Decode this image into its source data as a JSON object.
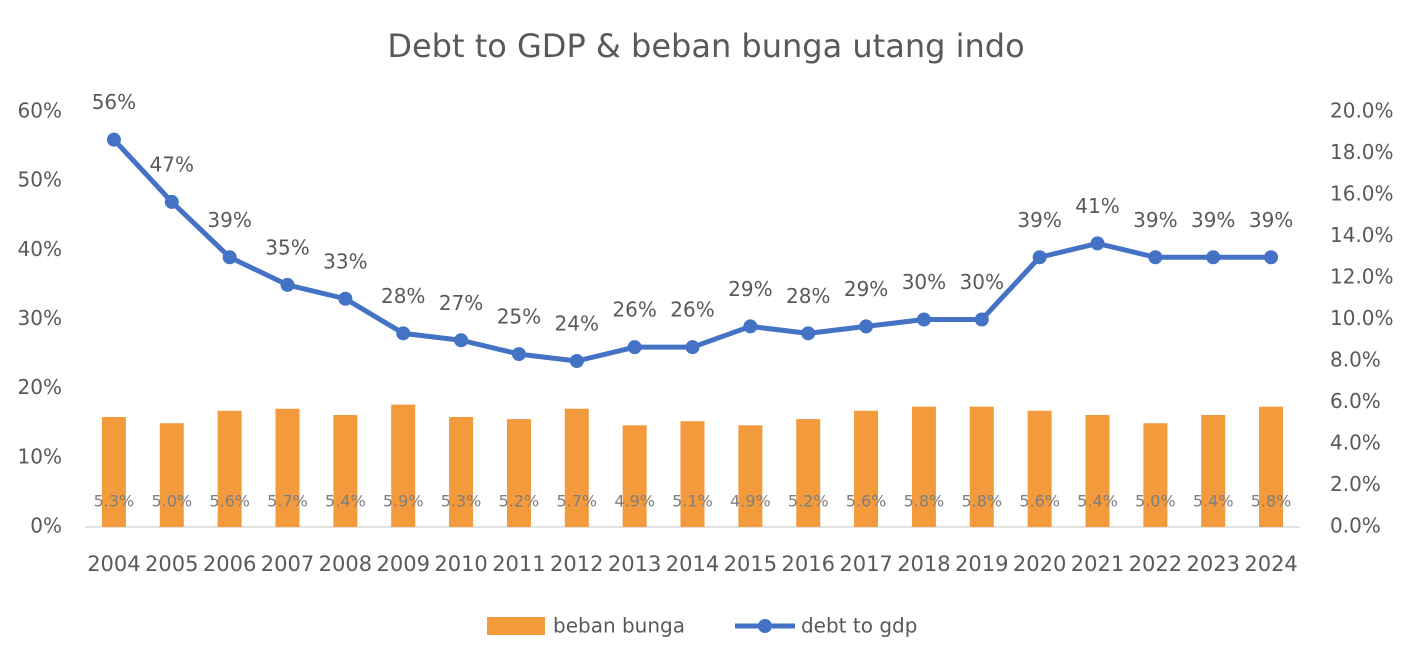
{
  "chart_data": {
    "type": "combo",
    "title": "Debt to GDP & beban bunga utang indo",
    "categories": [
      "2004",
      "2005",
      "2006",
      "2007",
      "2008",
      "2009",
      "2010",
      "2011",
      "2012",
      "2013",
      "2014",
      "2015",
      "2016",
      "2017",
      "2018",
      "2019",
      "2020",
      "2021",
      "2022",
      "2023",
      "2024"
    ],
    "series": [
      {
        "name": "beban bunga",
        "type": "bar",
        "axis": "y2",
        "color": "#f39a3c",
        "values": [
          5.3,
          5.0,
          5.6,
          5.7,
          5.4,
          5.9,
          5.3,
          5.2,
          5.7,
          4.9,
          5.1,
          4.9,
          5.2,
          5.6,
          5.8,
          5.8,
          5.6,
          5.4,
          5.0,
          5.4,
          5.8
        ],
        "value_labels": [
          "5.3%",
          "5.0%",
          "5.6%",
          "5.7%",
          "5.4%",
          "5.9%",
          "5.3%",
          "5.2%",
          "5.7%",
          "4.9%",
          "5.1%",
          "4.9%",
          "5.2%",
          "5.6%",
          "5.8%",
          "5.8%",
          "5.6%",
          "5.4%",
          "5.0%",
          "5.4%",
          "5.8%"
        ]
      },
      {
        "name": "debt to gdp",
        "type": "line",
        "axis": "y",
        "color": "#4472c4",
        "values": [
          56,
          47,
          39,
          35,
          33,
          28,
          27,
          25,
          24,
          26,
          26,
          29,
          28,
          29,
          30,
          30,
          39,
          41,
          39,
          39,
          39
        ],
        "value_labels": [
          "56%",
          "47%",
          "39%",
          "35%",
          "33%",
          "28%",
          "27%",
          "25%",
          "24%",
          "26%",
          "26%",
          "29%",
          "28%",
          "29%",
          "30%",
          "30%",
          "39%",
          "41%",
          "39%",
          "39%",
          "39%"
        ]
      }
    ],
    "ylim": [
      0,
      60
    ],
    "yticks": [
      {
        "value": 0,
        "label": "0%"
      },
      {
        "value": 10,
        "label": "10%"
      },
      {
        "value": 20,
        "label": "20%"
      },
      {
        "value": 30,
        "label": "30%"
      },
      {
        "value": 40,
        "label": "40%"
      },
      {
        "value": 50,
        "label": "50%"
      },
      {
        "value": 60,
        "label": "60%"
      }
    ],
    "y2lim": [
      0,
      20
    ],
    "y2ticks": [
      {
        "value": 0,
        "label": "0.0%"
      },
      {
        "value": 2,
        "label": "2.0%"
      },
      {
        "value": 4,
        "label": "4.0%"
      },
      {
        "value": 6,
        "label": "6.0%"
      },
      {
        "value": 8,
        "label": "8.0%"
      },
      {
        "value": 10,
        "label": "10.0%"
      },
      {
        "value": 12,
        "label": "12.0%"
      },
      {
        "value": 14,
        "label": "14.0%"
      },
      {
        "value": 16,
        "label": "16.0%"
      },
      {
        "value": 18,
        "label": "18.0%"
      },
      {
        "value": 20,
        "label": "20.0%"
      }
    ],
    "grid": false,
    "legend": "bottom"
  }
}
